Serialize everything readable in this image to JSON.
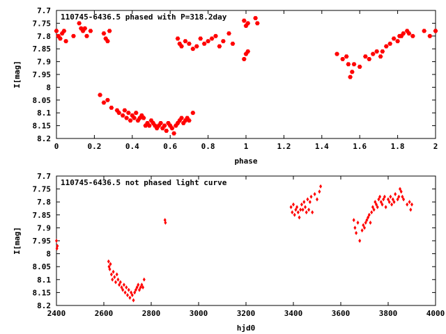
{
  "chart_data": [
    {
      "type": "scatter",
      "title": "110745-6436.5 phased with P=318.2day",
      "xlabel": "phase",
      "ylabel": "I[mag]",
      "xlim": [
        0,
        2
      ],
      "ylim": [
        8.2,
        7.7
      ],
      "y_inverted": true,
      "xticks": [
        "0",
        "0.2",
        "0.4",
        "0.6",
        "0.8",
        "1",
        "1.2",
        "1.4",
        "1.6",
        "1.8",
        "2"
      ],
      "yticks": [
        "7.7",
        "7.75",
        "7.8",
        "7.85",
        "7.9",
        "7.95",
        "8",
        "8.05",
        "8.1",
        "8.15",
        "8.2"
      ],
      "grid": false,
      "legend": "none",
      "marker": "filled-hexagon",
      "color": "#ff0000",
      "series": [
        {
          "x": [
            0.0,
            0.01,
            0.02,
            0.03,
            0.04,
            0.05,
            0.09,
            0.12,
            0.13,
            0.14,
            0.15,
            0.16,
            0.18,
            0.25,
            0.26,
            0.27,
            0.28,
            0.23,
            0.25,
            0.27,
            0.29,
            0.32,
            0.33,
            0.35,
            0.36,
            0.37,
            0.38,
            0.39,
            0.4,
            0.41,
            0.42,
            0.43,
            0.44,
            0.45,
            0.46,
            0.47,
            0.48,
            0.49,
            0.5,
            0.51,
            0.52,
            0.53,
            0.54,
            0.55,
            0.56,
            0.57,
            0.58,
            0.59,
            0.6,
            0.61,
            0.62,
            0.63,
            0.64,
            0.65,
            0.66,
            0.67,
            0.68,
            0.69,
            0.7,
            0.72,
            0.64,
            0.65,
            0.66,
            0.68,
            0.7,
            0.72,
            0.74,
            0.76,
            0.78,
            0.8,
            0.82,
            0.84,
            0.86,
            0.88,
            0.91,
            0.93,
            0.99,
            1.0,
            1.01,
            1.05,
            1.06,
            1.48,
            1.51,
            1.53,
            1.54,
            1.55,
            1.56,
            1.57,
            1.6,
            1.63,
            1.65,
            1.67,
            1.69,
            1.71,
            1.72,
            1.74,
            1.76,
            1.78,
            1.8,
            1.81,
            1.82,
            1.83,
            1.85,
            1.86,
            1.88,
            1.94,
            1.97,
            2.0,
            0.99,
            1.0,
            1.01
          ],
          "y": [
            7.78,
            7.8,
            7.81,
            7.79,
            7.78,
            7.82,
            7.8,
            7.75,
            7.77,
            7.78,
            7.77,
            7.8,
            7.78,
            7.79,
            7.81,
            7.82,
            7.78,
            8.03,
            8.06,
            8.05,
            8.08,
            8.09,
            8.1,
            8.11,
            8.09,
            8.12,
            8.1,
            8.13,
            8.11,
            8.12,
            8.1,
            8.13,
            8.12,
            8.11,
            8.12,
            8.15,
            8.14,
            8.15,
            8.13,
            8.14,
            8.15,
            8.16,
            8.15,
            8.14,
            8.16,
            8.15,
            8.17,
            8.14,
            8.15,
            8.16,
            8.18,
            8.15,
            8.14,
            8.13,
            8.12,
            8.14,
            8.13,
            8.12,
            8.13,
            8.1,
            7.81,
            7.83,
            7.84,
            7.82,
            7.83,
            7.85,
            7.84,
            7.81,
            7.83,
            7.82,
            7.81,
            7.8,
            7.84,
            7.82,
            7.79,
            7.83,
            7.74,
            7.76,
            7.75,
            7.73,
            7.75,
            7.87,
            7.89,
            7.88,
            7.91,
            7.96,
            7.94,
            7.91,
            7.92,
            7.88,
            7.89,
            7.87,
            7.86,
            7.88,
            7.86,
            7.84,
            7.83,
            7.81,
            7.82,
            7.8,
            7.8,
            7.79,
            7.78,
            7.79,
            7.8,
            7.78,
            7.8,
            7.78,
            7.89,
            7.87,
            7.86
          ]
        }
      ]
    },
    {
      "type": "scatter",
      "title": "110745-6436.5 not phased light curve",
      "xlabel": "hjd0",
      "ylabel": "I[mag]",
      "xlim": [
        2400,
        4000
      ],
      "ylim": [
        8.2,
        7.7
      ],
      "y_inverted": true,
      "xticks": [
        "2400",
        "2600",
        "2800",
        "3000",
        "3200",
        "3400",
        "3600",
        "3800",
        "4000"
      ],
      "yticks": [
        "7.7",
        "7.75",
        "7.8",
        "7.85",
        "7.9",
        "7.95",
        "8",
        "8.05",
        "8.1",
        "8.15",
        "8.2"
      ],
      "grid": false,
      "legend": "none",
      "marker": "small-diamond",
      "color": "#ff0000",
      "series": [
        {
          "x": [
            2400,
            2402,
            2404,
            2620,
            2622,
            2625,
            2628,
            2632,
            2636,
            2640,
            2645,
            2650,
            2655,
            2660,
            2665,
            2670,
            2675,
            2680,
            2685,
            2690,
            2695,
            2700,
            2705,
            2710,
            2715,
            2720,
            2725,
            2730,
            2735,
            2740,
            2745,
            2750,
            2755,
            2760,
            2765,
            2770,
            2858,
            2860,
            3390,
            3395,
            3400,
            3405,
            3410,
            3415,
            3420,
            3425,
            3430,
            3435,
            3440,
            3445,
            3450,
            3455,
            3460,
            3465,
            3470,
            3475,
            3480,
            3490,
            3500,
            3510,
            3515,
            3655,
            3660,
            3665,
            3672,
            3680,
            3690,
            3695,
            3700,
            3705,
            3710,
            3715,
            3720,
            3725,
            3730,
            3735,
            3740,
            3745,
            3750,
            3755,
            3760,
            3765,
            3770,
            3775,
            3780,
            3785,
            3790,
            3800,
            3805,
            3810,
            3815,
            3820,
            3825,
            3830,
            3840,
            3845,
            3850,
            3855,
            3860,
            3865,
            3880,
            3890,
            3895,
            3900
          ],
          "y": [
            7.95,
            7.98,
            7.97,
            8.03,
            8.05,
            8.06,
            8.04,
            8.08,
            8.1,
            8.07,
            8.09,
            8.11,
            8.08,
            8.1,
            8.12,
            8.11,
            8.13,
            8.14,
            8.12,
            8.15,
            8.13,
            8.16,
            8.14,
            8.17,
            8.15,
            8.16,
            8.18,
            8.15,
            8.14,
            8.13,
            8.12,
            8.14,
            8.13,
            8.12,
            8.13,
            8.1,
            7.87,
            7.88,
            7.82,
            7.84,
            7.81,
            7.85,
            7.83,
            7.82,
            7.84,
            7.86,
            7.83,
            7.81,
            7.83,
            7.8,
            7.82,
            7.84,
            7.79,
            7.83,
            7.8,
            7.78,
            7.84,
            7.77,
            7.79,
            7.76,
            7.74,
            7.87,
            7.9,
            7.92,
            7.88,
            7.95,
            7.91,
            7.89,
            7.9,
            7.88,
            7.87,
            7.86,
            7.85,
            7.88,
            7.84,
            7.82,
            7.83,
            7.8,
            7.81,
            7.82,
            7.79,
            7.78,
            7.8,
            7.81,
            7.79,
            7.78,
            7.82,
            7.79,
            7.8,
            7.78,
            7.81,
            7.79,
            7.8,
            7.77,
            7.79,
            7.78,
            7.75,
            7.76,
            7.78,
            7.79,
            7.81,
            7.8,
            7.83,
            7.81
          ]
        }
      ]
    }
  ]
}
